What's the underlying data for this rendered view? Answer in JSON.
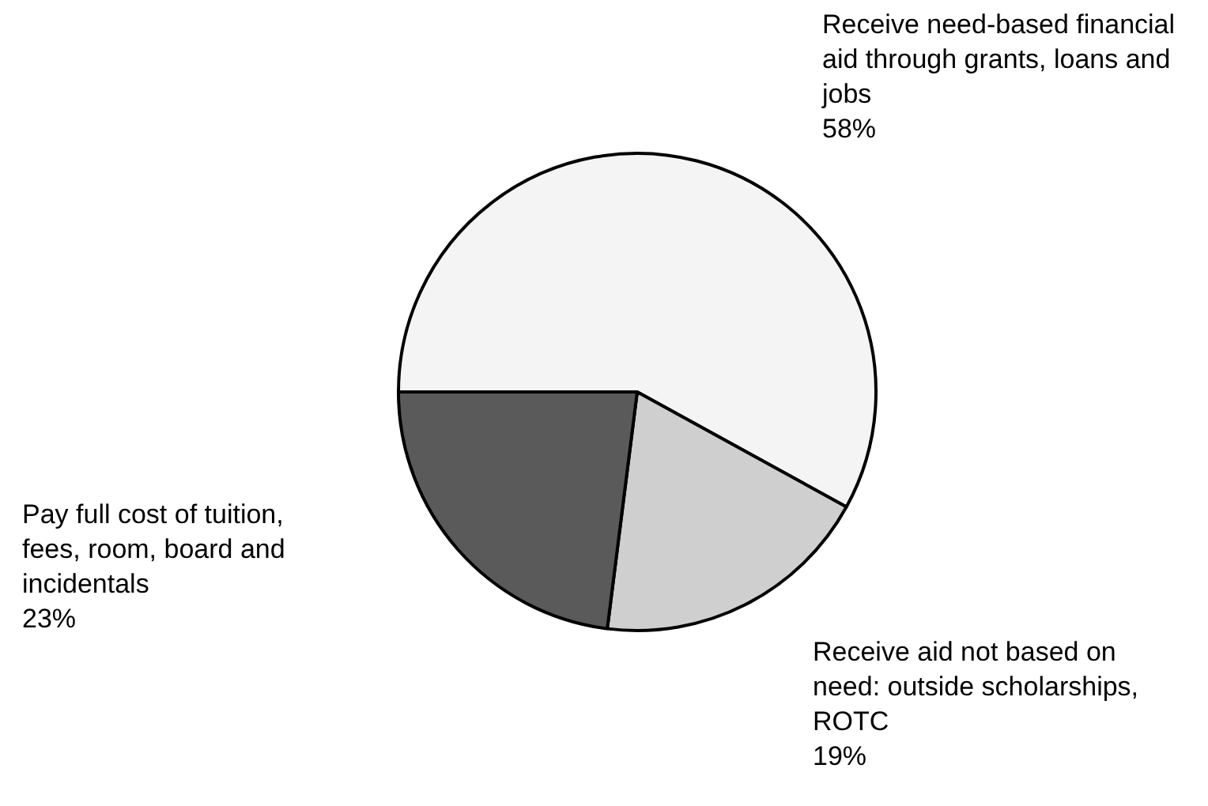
{
  "chart_data": {
    "type": "pie",
    "categories": [
      "Receive need-based financial aid through grants, loans and jobs",
      "Receive aid not based on need: outside scholarships, ROTC",
      "Pay full cost of tuition, fees, room, board and incidentals"
    ],
    "values": [
      58,
      19,
      23
    ],
    "value_labels": [
      "58%",
      "19%",
      "23%"
    ],
    "colors": [
      "#f4f4f4",
      "#cfcfcf",
      "#5a5a5a"
    ]
  }
}
